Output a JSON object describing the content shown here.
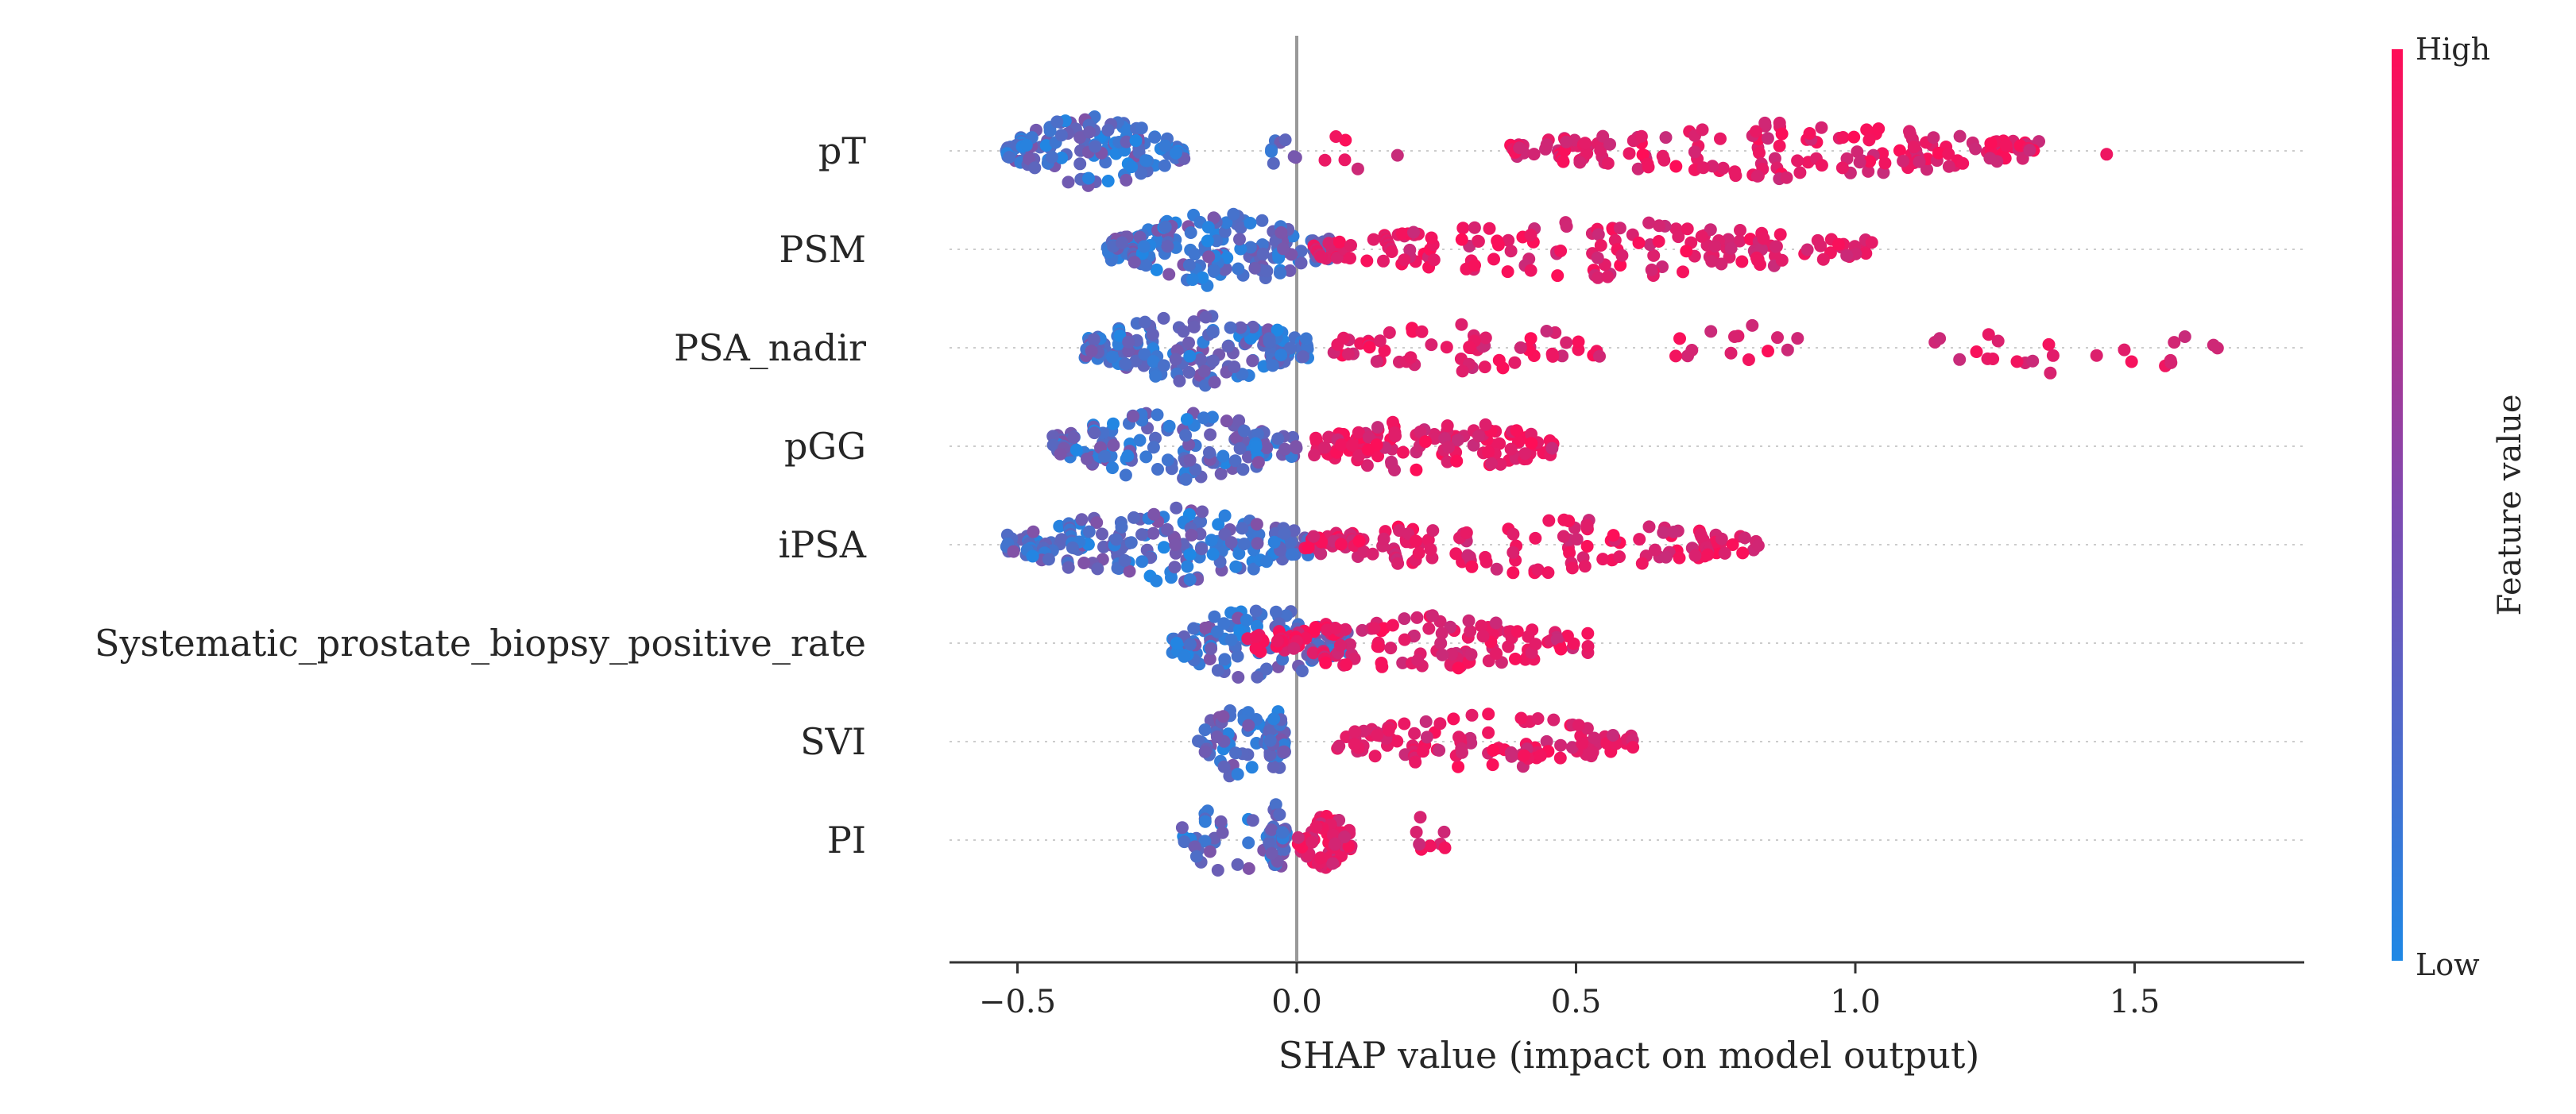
{
  "chart_data": {
    "type": "scatter",
    "subtype": "shap-beeswarm",
    "features": [
      "pT",
      "PSM",
      "PSA_nadir",
      "pGG",
      "iPSA",
      "Systematic_prostate_biopsy_positive_rate",
      "SVI",
      "PI"
    ],
    "xlabel": "SHAP value (impact on model output)",
    "xlim": [
      -0.63,
      1.8
    ],
    "xticks": [
      -0.5,
      0.0,
      0.5,
      1.0,
      1.5
    ],
    "xtick_labels": [
      "−0.5",
      "0.0",
      "0.5",
      "1.0",
      "1.5"
    ],
    "colorbar": {
      "title": "Feature value",
      "high_label": "High",
      "low_label": "Low"
    },
    "colors": {
      "low": "#1e88e5",
      "high": "#ff0d57",
      "zero_line": "#999999",
      "grid": "#cccccc"
    },
    "series": [
      {
        "name": "pT",
        "low": [
          [
            -0.52,
            -0.2,
            140
          ],
          [
            -0.05,
            0.0,
            8
          ]
        ],
        "high": [
          [
            0.05,
            0.2,
            6
          ],
          [
            0.38,
            1.33,
            180
          ],
          [
            1.45,
            1.45,
            1
          ]
        ]
      },
      {
        "name": "PSM",
        "low": [
          [
            -0.34,
            0.06,
            180
          ]
        ],
        "high": [
          [
            0.03,
            1.03,
            180
          ]
        ]
      },
      {
        "name": "PSA_nadir",
        "low": [
          [
            -0.38,
            0.03,
            170
          ]
        ],
        "high": [
          [
            0.05,
            0.55,
            60
          ],
          [
            0.67,
            0.9,
            14
          ],
          [
            1.13,
            1.66,
            24
          ]
        ]
      },
      {
        "name": "pGG",
        "low": [
          [
            -0.44,
            0.0,
            150
          ]
        ],
        "high": [
          [
            0.03,
            0.46,
            130
          ]
        ]
      },
      {
        "name": "iPSA",
        "low": [
          [
            -0.52,
            0.05,
            200
          ]
        ],
        "high": [
          [
            0.0,
            0.83,
            150
          ]
        ]
      },
      {
        "name": "Systematic_prostate_biopsy_positive_rate",
        "low": [
          [
            -0.23,
            0.1,
            120
          ]
        ],
        "high": [
          [
            -0.1,
            0.53,
            140
          ]
        ]
      },
      {
        "name": "SVI",
        "low": [
          [
            -0.18,
            -0.03,
            60
          ],
          [
            -0.05,
            -0.02,
            40
          ]
        ],
        "high": [
          [
            0.07,
            0.61,
            110
          ]
        ]
      },
      {
        "name": "PI",
        "low": [
          [
            -0.22,
            -0.01,
            40
          ],
          [
            -0.05,
            -0.02,
            30
          ]
        ],
        "high": [
          [
            0.0,
            0.1,
            70
          ],
          [
            0.2,
            0.27,
            8
          ]
        ]
      }
    ]
  }
}
